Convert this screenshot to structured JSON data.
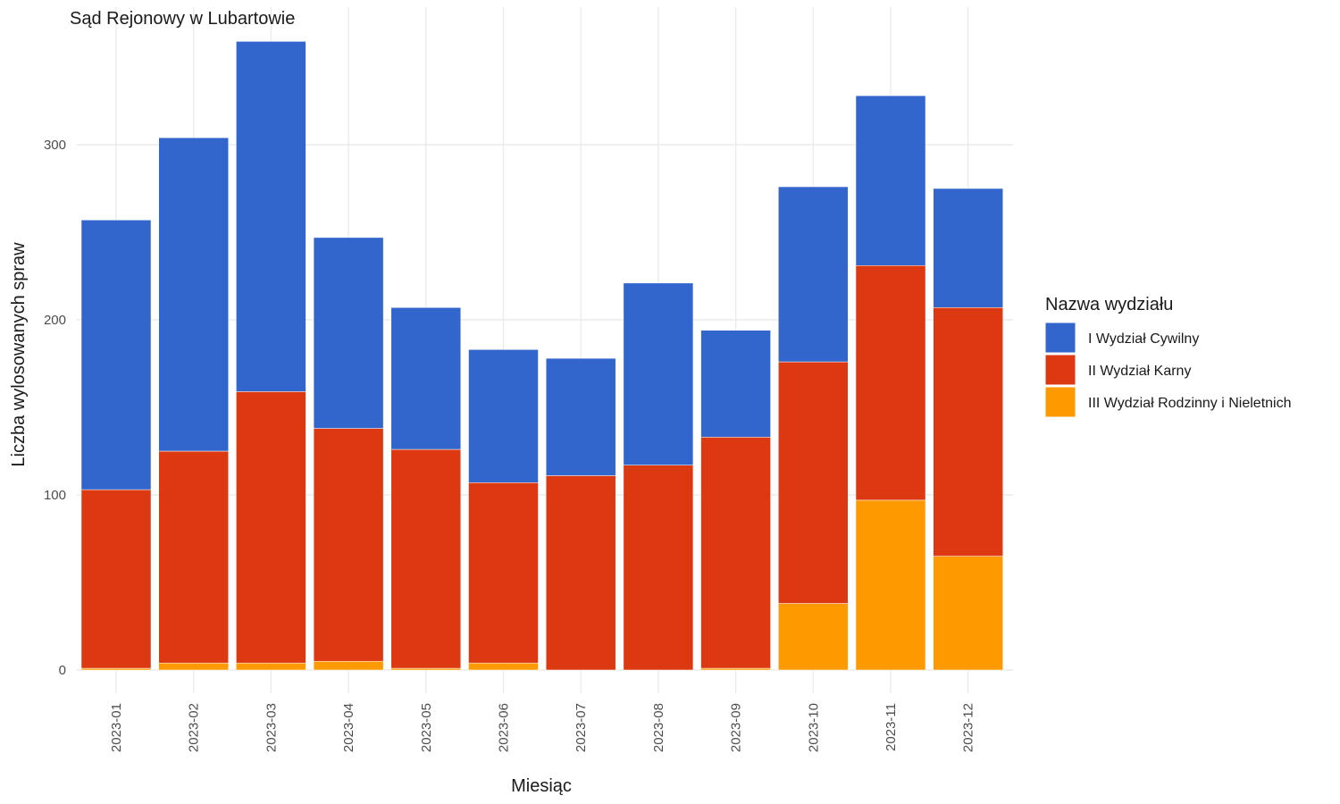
{
  "chart_data": {
    "type": "bar",
    "stacked": true,
    "title": "Sąd Rejonowy w Lubartowie",
    "xlabel": "Miesiąc",
    "ylabel": "Liczba wylosowanych spraw",
    "ylim": [
      0,
      375
    ],
    "yticks": [
      0,
      100,
      200,
      300
    ],
    "grid": true,
    "legend_title": "Nazwa wydziału",
    "legend_position": "right",
    "categories": [
      "2023-01",
      "2023-02",
      "2023-03",
      "2023-04",
      "2023-05",
      "2023-06",
      "2023-07",
      "2023-08",
      "2023-09",
      "2023-10",
      "2023-11",
      "2023-12"
    ],
    "series": [
      {
        "name": "I Wydział Cywilny",
        "color": "#3366cc",
        "values": [
          154,
          179,
          200,
          109,
          81,
          76,
          67,
          104,
          61,
          100,
          97,
          68
        ]
      },
      {
        "name": "II Wydział Karny",
        "color": "#dc3912",
        "values": [
          102,
          121,
          155,
          133,
          125,
          103,
          111,
          117,
          132,
          138,
          134,
          142
        ]
      },
      {
        "name": "III Wydział Rodzinny i Nieletnich",
        "color": "#ff9900",
        "values": [
          1,
          4,
          4,
          5,
          1,
          4,
          0,
          0,
          1,
          38,
          97,
          65
        ]
      }
    ]
  }
}
